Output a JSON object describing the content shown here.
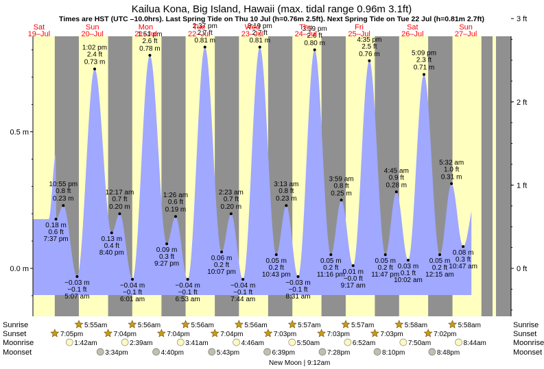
{
  "chart_data": {
    "type": "area",
    "title": "Kailua Kona, Big Island, Hawaii (max. tidal range 0.96m 3.1ft)",
    "subtitle": "Times are HST (UTC –10.0hrs). Last Spring Tide on Thu 10 Jul (h=0.76m 2.5ft). Next Spring Tide on Tue 22 Jul (h=0.81m 2.7ft)",
    "x_range_hours": [
      0,
      216
    ],
    "y_range_m": [
      -0.18,
      0.87
    ],
    "left_axis_ticks": [
      {
        "v": 0.5,
        "label": "0.5 m"
      },
      {
        "v": 0.0,
        "label": "0.0 m"
      }
    ],
    "right_axis_ticks": [
      {
        "v": 0.9144,
        "label": "3 ft"
      },
      {
        "v": 0.6096,
        "label": "2 ft"
      },
      {
        "v": 0.3048,
        "label": "1 ft"
      },
      {
        "v": 0.0,
        "label": "0 ft"
      }
    ],
    "days": [
      {
        "dow": "Sat",
        "date": "19–Jul"
      },
      {
        "dow": "Sun",
        "date": "20–Jul"
      },
      {
        "dow": "Mon",
        "date": "21–Jul"
      },
      {
        "dow": "Tue",
        "date": "22–Jul"
      },
      {
        "dow": "Wed",
        "date": "23–Jul"
      },
      {
        "dow": "Thu",
        "date": "24–Jul"
      },
      {
        "dow": "Fri",
        "date": "25–Jul"
      },
      {
        "dow": "Sat",
        "date": "26–Jul"
      },
      {
        "dow": "Sun",
        "date": "27–Jul"
      }
    ],
    "tides": [
      {
        "t": 19.62,
        "h": 0.18,
        "type": "low",
        "time": "7:37 pm",
        "ft": "0.6 ft",
        "m": "0.18 m"
      },
      {
        "t": 22.92,
        "h": 0.23,
        "type": "high",
        "time": "10:55 pm",
        "ft": "0.8 ft",
        "m": "0.23 m"
      },
      {
        "t": 29.12,
        "h": -0.03,
        "type": "low",
        "time": "5:07 am",
        "ft": "−0.1 ft",
        "m": "−0.03 m"
      },
      {
        "t": 37.03,
        "h": 0.73,
        "type": "high",
        "time": "1:02 pm",
        "ft": "2.4 ft",
        "m": "0.73 m"
      },
      {
        "t": 44.67,
        "h": 0.13,
        "type": "low",
        "time": "8:40 pm",
        "ft": "0.4 ft",
        "m": "0.13 m"
      },
      {
        "t": 48.28,
        "h": 0.2,
        "type": "high",
        "time": "12:17 am",
        "ft": "0.7 ft",
        "m": "0.20 m"
      },
      {
        "t": 54.02,
        "h": -0.04,
        "type": "low",
        "time": "6:01 am",
        "ft": "−0.1 ft",
        "m": "−0.04 m"
      },
      {
        "t": 61.85,
        "h": 0.78,
        "type": "high",
        "time": "1:51 pm",
        "ft": "2.6 ft",
        "m": "0.78 m"
      },
      {
        "t": 69.45,
        "h": 0.09,
        "type": "low",
        "time": "9:27 pm",
        "ft": "0.3 ft",
        "m": "0.09 m"
      },
      {
        "t": 73.43,
        "h": 0.19,
        "type": "high",
        "time": "1:26 am",
        "ft": "0.6 ft",
        "m": "0.19 m"
      },
      {
        "t": 78.88,
        "h": -0.04,
        "type": "low",
        "time": "6:53 am",
        "ft": "−0.1 ft",
        "m": "−0.04 m"
      },
      {
        "t": 86.62,
        "h": 0.81,
        "type": "high",
        "time": "2:37 pm",
        "ft": "2.7 ft",
        "m": "0.81 m"
      },
      {
        "t": 94.12,
        "h": 0.06,
        "type": "low",
        "time": "10:07 pm",
        "ft": "0.2 ft",
        "m": "0.06 m"
      },
      {
        "t": 98.38,
        "h": 0.2,
        "type": "high",
        "time": "2:23 am",
        "ft": "0.7 ft",
        "m": "0.20 m"
      },
      {
        "t": 103.73,
        "h": -0.04,
        "type": "low",
        "time": "7:44 am",
        "ft": "−0.1 ft",
        "m": "−0.04 m"
      },
      {
        "t": 111.32,
        "h": 0.81,
        "type": "high",
        "time": "3:19 pm",
        "ft": "2.7 ft",
        "m": "0.81 m"
      },
      {
        "t": 118.72,
        "h": 0.05,
        "type": "low",
        "time": "10:43 pm",
        "ft": "0.2 ft",
        "m": "0.05 m"
      },
      {
        "t": 123.22,
        "h": 0.23,
        "type": "high",
        "time": "3:13 am",
        "ft": "0.8 ft",
        "m": "0.23 m"
      },
      {
        "t": 128.52,
        "h": -0.03,
        "type": "low",
        "time": "8:31 am",
        "ft": "−0.1 ft",
        "m": "−0.03 m"
      },
      {
        "t": 135.98,
        "h": 0.8,
        "type": "high",
        "time": "3:59 pm",
        "ft": "2.6 ft",
        "m": "0.80 m"
      },
      {
        "t": 143.27,
        "h": 0.05,
        "type": "low",
        "time": "11:16 pm",
        "ft": "0.2 ft",
        "m": "0.05 m"
      },
      {
        "t": 147.98,
        "h": 0.25,
        "type": "high",
        "time": "3:59 am",
        "ft": "0.8 ft",
        "m": "0.25 m"
      },
      {
        "t": 153.28,
        "h": 0.01,
        "type": "low",
        "time": "9:17 am",
        "ft": "−0.0 ft",
        "m": "0.01 m"
      },
      {
        "t": 160.58,
        "h": 0.76,
        "type": "high",
        "time": "4:35 pm",
        "ft": "2.5 ft",
        "m": "0.76 m"
      },
      {
        "t": 167.78,
        "h": 0.05,
        "type": "low",
        "time": "11:47 pm",
        "ft": "0.2 ft",
        "m": "0.05 m"
      },
      {
        "t": 172.75,
        "h": 0.28,
        "type": "high",
        "time": "4:45 am",
        "ft": "0.9 ft",
        "m": "0.28 m"
      },
      {
        "t": 178.03,
        "h": 0.03,
        "type": "low",
        "time": "10:02 am",
        "ft": "0.1 ft",
        "m": "0.03 m"
      },
      {
        "t": 185.15,
        "h": 0.71,
        "type": "high",
        "time": "5:09 pm",
        "ft": "2.3 ft",
        "m": "0.71 m"
      },
      {
        "t": 192.25,
        "h": 0.05,
        "type": "low",
        "time": "12:15 am",
        "ft": "0.2 ft",
        "m": "0.05 m"
      },
      {
        "t": 197.53,
        "h": 0.31,
        "type": "high",
        "time": "5:32 am",
        "ft": "1.0 ft",
        "m": "0.31 m"
      },
      {
        "t": 202.78,
        "h": 0.08,
        "type": "low",
        "time": "10:47 am",
        "ft": "0.3 ft",
        "m": "0.08 m"
      }
    ],
    "nights": [
      [
        0,
        5.92
      ],
      [
        19.08,
        29.92
      ],
      [
        43.07,
        53.93
      ],
      [
        67.07,
        77.93
      ],
      [
        91.07,
        101.93
      ],
      [
        115.05,
        125.95
      ],
      [
        139.05,
        149.95
      ],
      [
        163.05,
        173.97
      ],
      [
        187.03,
        197.97
      ],
      [
        211.0,
        216
      ]
    ],
    "sun_moon": {
      "row_labels": {
        "sunrise": "Sunrise",
        "sunset": "Sunset",
        "moonrise": "Moonrise",
        "moonset": "Moonset"
      },
      "sunrise": [
        {
          "t": 29.92,
          "label": "5:55am"
        },
        {
          "t": 53.93,
          "label": "5:56am"
        },
        {
          "t": 77.93,
          "label": "5:56am"
        },
        {
          "t": 101.93,
          "label": "5:56am"
        },
        {
          "t": 125.95,
          "label": "5:57am"
        },
        {
          "t": 149.95,
          "label": "5:57am"
        },
        {
          "t": 173.97,
          "label": "5:58am"
        },
        {
          "t": 197.97,
          "label": "5:58am"
        }
      ],
      "sunset": [
        {
          "t": 19.08,
          "label": "7:05pm"
        },
        {
          "t": 43.07,
          "label": "7:04pm"
        },
        {
          "t": 67.07,
          "label": "7:04pm"
        },
        {
          "t": 91.07,
          "label": "7:04pm"
        },
        {
          "t": 115.05,
          "label": "7:03pm"
        },
        {
          "t": 139.05,
          "label": "7:03pm"
        },
        {
          "t": 163.05,
          "label": "7:03pm"
        },
        {
          "t": 187.03,
          "label": "7:02pm"
        }
      ],
      "moonrise": [
        {
          "t": 25.7,
          "label": "1:42am"
        },
        {
          "t": 50.65,
          "label": "2:39am"
        },
        {
          "t": 75.68,
          "label": "3:41am"
        },
        {
          "t": 100.77,
          "label": "4:46am"
        },
        {
          "t": 125.83,
          "label": "5:50am"
        },
        {
          "t": 150.87,
          "label": "6:52am"
        },
        {
          "t": 175.83,
          "label": "7:50am"
        },
        {
          "t": 200.73,
          "label": "8:44am"
        }
      ],
      "moonset": [
        {
          "t": 39.57,
          "label": "3:34pm"
        },
        {
          "t": 64.67,
          "label": "4:40pm"
        },
        {
          "t": 89.72,
          "label": "5:43pm"
        },
        {
          "t": 114.65,
          "label": "6:39pm"
        },
        {
          "t": 139.47,
          "label": "7:28pm"
        },
        {
          "t": 164.17,
          "label": "8:10pm"
        },
        {
          "t": 188.8,
          "label": "8:48pm"
        }
      ],
      "moon_phase": {
        "t": 129.2,
        "label": "New Moon | 9:12am"
      }
    },
    "colors": {
      "day": "#ffffc0",
      "night": "#909090",
      "water": "#a0a8ff",
      "date_text": "#ff0000",
      "sun": "#c89a1a",
      "moonrise": "#fff8c0",
      "moonset": "#c0c0b0"
    }
  }
}
